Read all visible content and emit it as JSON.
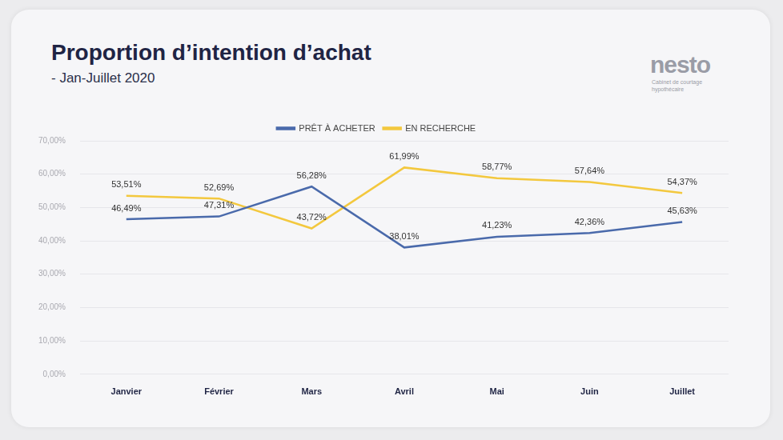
{
  "chart_data": {
    "type": "line",
    "title": "Proportion d’intention d’achat",
    "subtitle": "- Jan-Juillet 2020",
    "annotations": [
      "nesto",
      "Cabinet de courtage hypothécaire"
    ],
    "categories": [
      "Janvier",
      "Février",
      "Mars",
      "Avril",
      "Mai",
      "Juin",
      "Juillet"
    ],
    "series": [
      {
        "name": "PRÊT À ACHETER",
        "color": "#4a6aab",
        "values": [
          46.49,
          47.31,
          56.28,
          38.01,
          41.23,
          42.36,
          45.63
        ],
        "value_labels": [
          "46,49%",
          "47,31%",
          "56,28%",
          "38,01%",
          "41,23%",
          "42,36%",
          "45,63%"
        ]
      },
      {
        "name": "EN RECHERCHE",
        "color": "#f3c83e",
        "values": [
          53.51,
          52.69,
          43.72,
          61.99,
          58.77,
          57.64,
          54.37
        ],
        "value_labels": [
          "53,51%",
          "52,69%",
          "43,72%",
          "61,99%",
          "58,77%",
          "57,64%",
          "54,37%"
        ]
      }
    ],
    "ylim": [
      0,
      70
    ],
    "yticks": [
      {
        "value": 0,
        "label": "0,00%"
      },
      {
        "value": 10,
        "label": "10,00%"
      },
      {
        "value": 20,
        "label": "20,00%"
      },
      {
        "value": 30,
        "label": "30,00%"
      },
      {
        "value": 40,
        "label": "40,00%"
      },
      {
        "value": 50,
        "label": "50,00%"
      },
      {
        "value": 60,
        "label": "60,00%"
      },
      {
        "value": 70,
        "label": "70,00%"
      }
    ],
    "grid": true,
    "legend": "top",
    "data_labels": true
  }
}
